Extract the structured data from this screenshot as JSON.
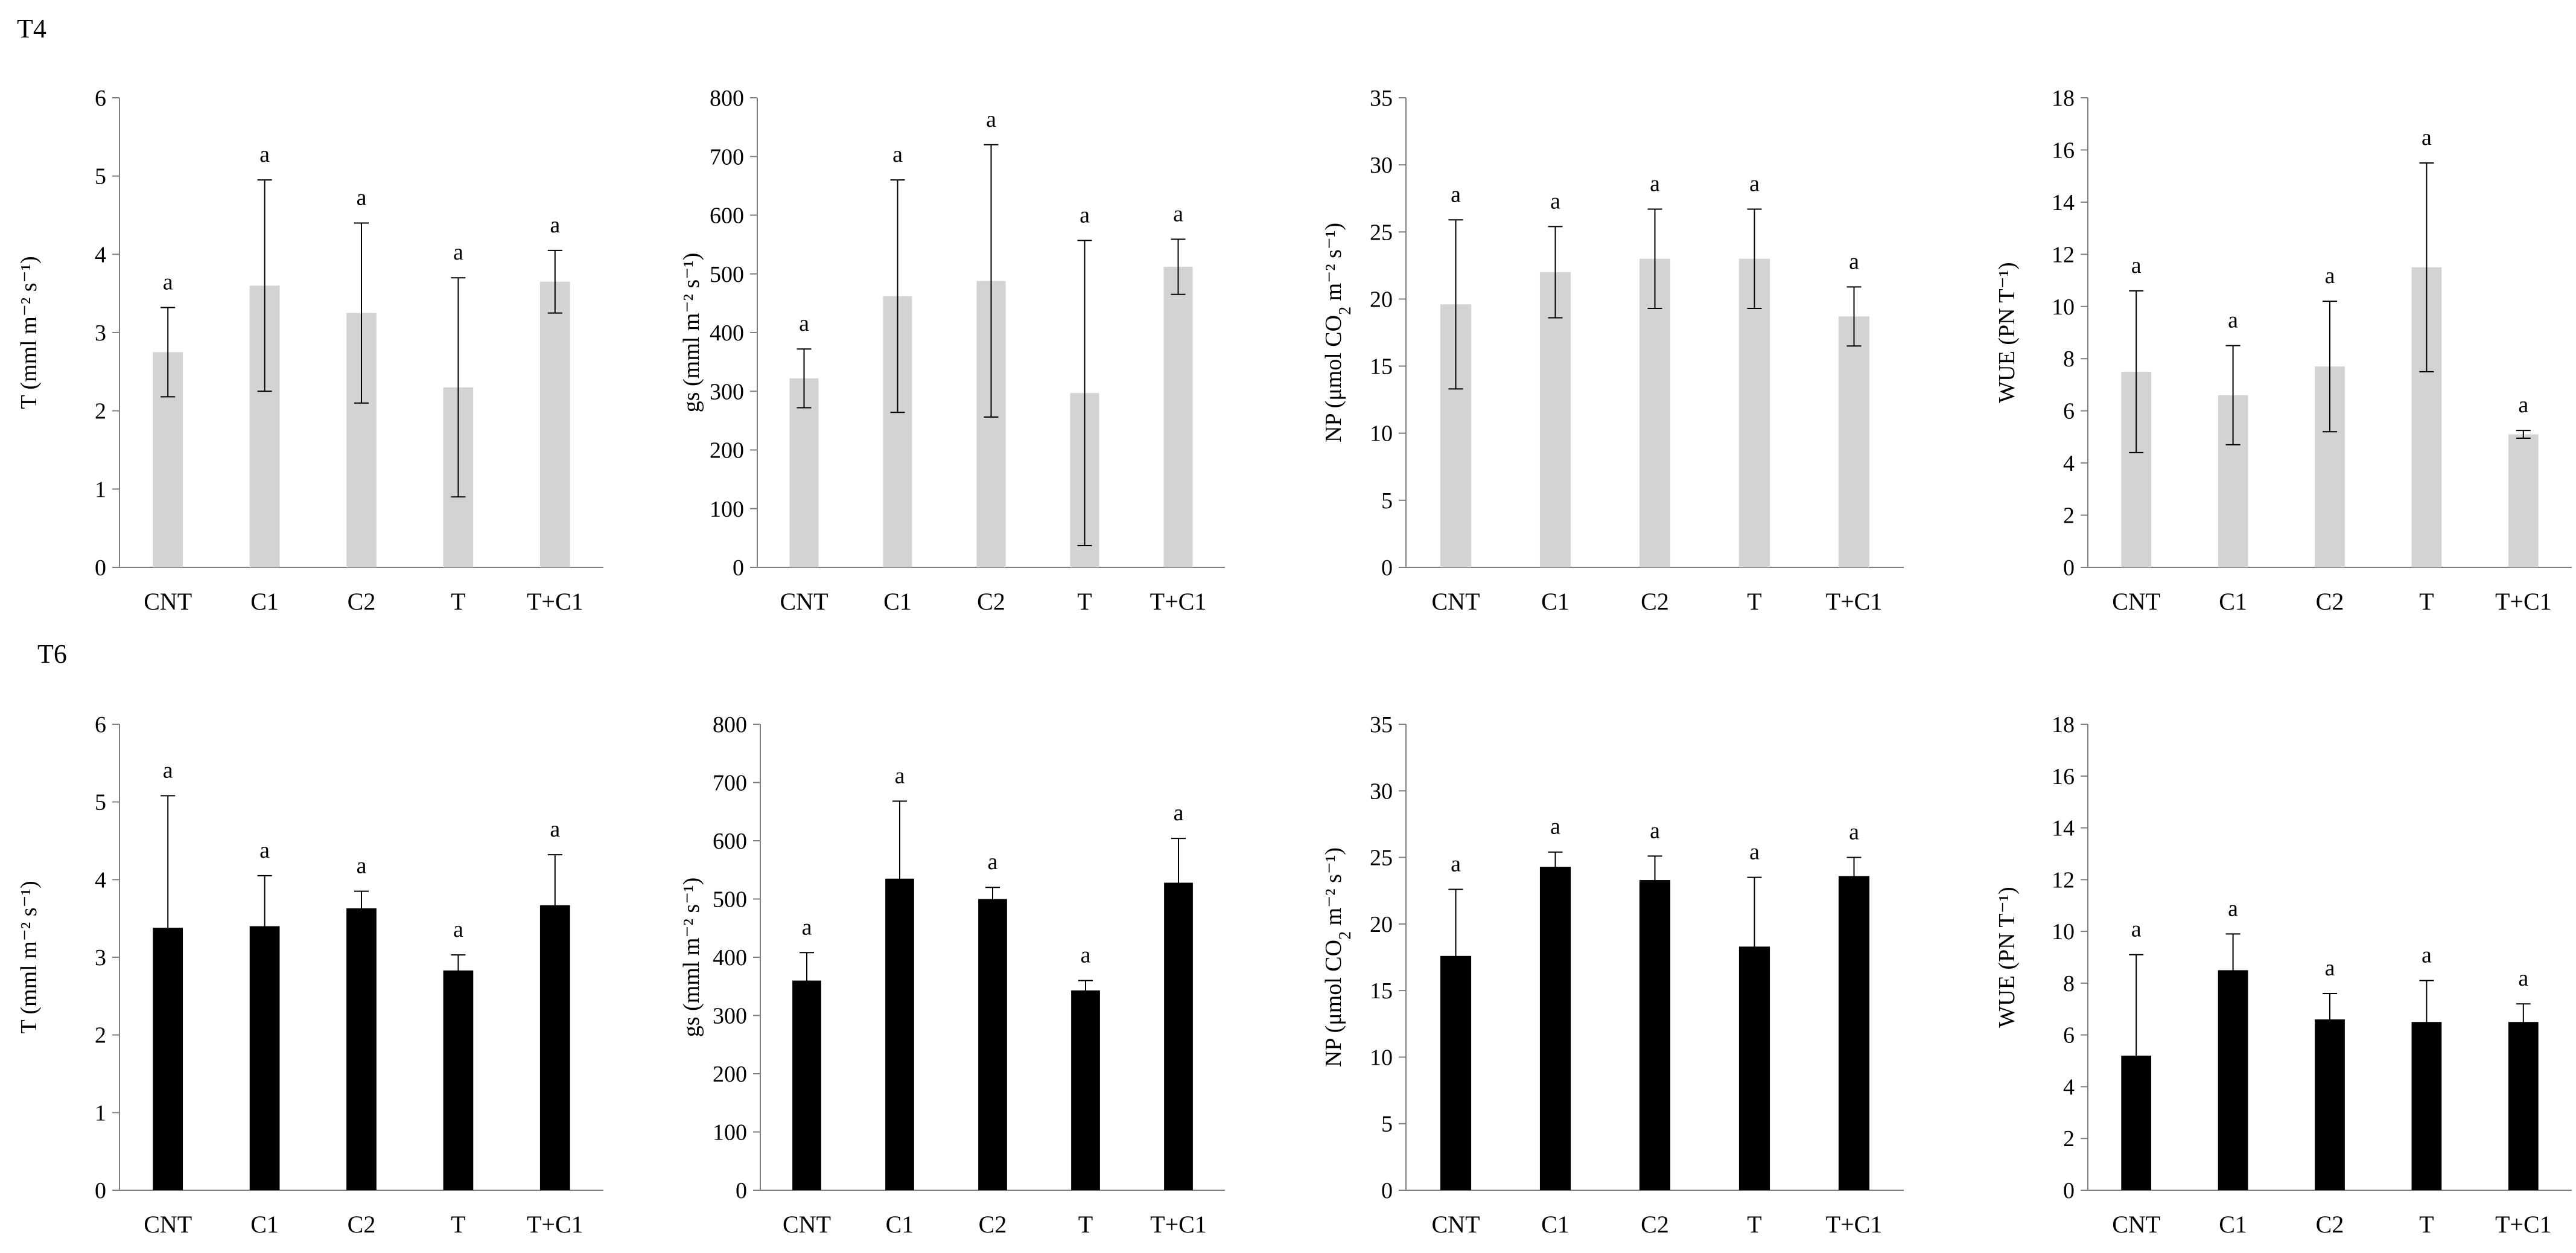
{
  "figure": {
    "row_labels": [
      "T4",
      "T6"
    ]
  },
  "colors": {
    "row_T4_bars": "#d3d3d3",
    "row_T6_bars": "#000000",
    "axis": "#7f7f7f",
    "error_bar": "#000000"
  },
  "chart_data": [
    {
      "id": "t4-transpiration",
      "row": "T4",
      "type": "bar",
      "categories": [
        "CNT",
        "C1",
        "C2",
        "T",
        "T+C1"
      ],
      "values": [
        2.75,
        3.6,
        3.25,
        2.3,
        3.65
      ],
      "errors": [
        0.57,
        1.35,
        1.15,
        1.4,
        0.4
      ],
      "sig_labels": [
        "a",
        "a",
        "a",
        "a",
        "a"
      ],
      "ylabel": "T (mml m⁻² s⁻¹)",
      "ylim": [
        0,
        6
      ],
      "yticks": [
        0,
        1,
        2,
        3,
        4,
        5,
        6
      ],
      "bar_color": "#d3d3d3"
    },
    {
      "id": "t4-stomatal-conductance",
      "row": "T4",
      "type": "bar",
      "categories": [
        "CNT",
        "C1",
        "C2",
        "T",
        "T+C1"
      ],
      "values": [
        322,
        462,
        488,
        297,
        512
      ],
      "errors": [
        50,
        198,
        232,
        260,
        47
      ],
      "sig_labels": [
        "a",
        "a",
        "a",
        "a",
        "a"
      ],
      "ylabel": "gs (mml m⁻² s⁻¹)",
      "ylim": [
        0,
        800
      ],
      "yticks": [
        0,
        100,
        200,
        300,
        400,
        500,
        600,
        700,
        800
      ],
      "bar_color": "#d3d3d3"
    },
    {
      "id": "t4-net-photosynthesis",
      "row": "T4",
      "type": "bar",
      "categories": [
        "CNT",
        "C1",
        "C2",
        "T",
        "T+C1"
      ],
      "values": [
        19.6,
        22.0,
        23.0,
        23.0,
        18.7
      ],
      "errors": [
        6.3,
        3.4,
        3.7,
        3.7,
        2.2
      ],
      "sig_labels": [
        "a",
        "a",
        "a",
        "a",
        "a"
      ],
      "ylabel_parts": [
        "NP (μmol CO",
        "2",
        " m⁻² s⁻¹)"
      ],
      "ylim": [
        0,
        35
      ],
      "yticks": [
        0,
        5,
        10,
        15,
        20,
        25,
        30,
        35
      ],
      "bar_color": "#d3d3d3"
    },
    {
      "id": "t4-water-use-efficiency",
      "row": "T4",
      "type": "bar",
      "categories": [
        "CNT",
        "C1",
        "C2",
        "T",
        "T+C1"
      ],
      "values": [
        7.5,
        6.6,
        7.7,
        11.5,
        5.1
      ],
      "errors": [
        3.1,
        1.9,
        2.5,
        4.0,
        0.15
      ],
      "sig_labels": [
        "a",
        "a",
        "a",
        "a",
        "a"
      ],
      "ylabel": "WUE (PN T⁻¹)",
      "ylim": [
        0,
        18
      ],
      "yticks": [
        0,
        2,
        4,
        6,
        8,
        10,
        12,
        14,
        16,
        18
      ],
      "bar_color": "#d3d3d3"
    },
    {
      "id": "t6-transpiration",
      "row": "T6",
      "type": "bar",
      "categories": [
        "CNT",
        "C1",
        "C2",
        "T",
        "T+C1"
      ],
      "values": [
        3.38,
        3.4,
        3.63,
        2.83,
        3.67
      ],
      "errors": [
        1.7,
        0.65,
        0.22,
        0.2,
        0.65
      ],
      "sig_labels": [
        "a",
        "a",
        "a",
        "a",
        "a"
      ],
      "ylabel": "T (mml m⁻² s⁻¹)",
      "ylim": [
        0,
        6
      ],
      "yticks": [
        0,
        1,
        2,
        3,
        4,
        5,
        6
      ],
      "bar_color": "#000000"
    },
    {
      "id": "t6-stomatal-conductance",
      "row": "T6",
      "type": "bar",
      "categories": [
        "CNT",
        "C1",
        "C2",
        "T",
        "T+C1"
      ],
      "values": [
        360,
        535,
        500,
        343,
        528
      ],
      "errors": [
        48,
        133,
        20,
        17,
        76
      ],
      "sig_labels": [
        "a",
        "a",
        "a",
        "a",
        "a"
      ],
      "ylabel": "gs (mml m⁻² s⁻¹)",
      "ylim": [
        0,
        800
      ],
      "yticks": [
        0,
        100,
        200,
        300,
        400,
        500,
        600,
        700,
        800
      ],
      "bar_color": "#000000"
    },
    {
      "id": "t6-net-photosynthesis",
      "row": "T6",
      "type": "bar",
      "categories": [
        "CNT",
        "C1",
        "C2",
        "T",
        "T+C1"
      ],
      "values": [
        17.6,
        24.3,
        23.3,
        18.3,
        23.6
      ],
      "errors": [
        5.0,
        1.1,
        1.8,
        5.2,
        1.4
      ],
      "sig_labels": [
        "a",
        "a",
        "a",
        "a",
        "a"
      ],
      "ylabel_parts": [
        "NP (μmol CO",
        "2",
        " m⁻² s⁻¹)"
      ],
      "ylim": [
        0,
        35
      ],
      "yticks": [
        0,
        5,
        10,
        15,
        20,
        25,
        30,
        35
      ],
      "bar_color": "#000000"
    },
    {
      "id": "t6-water-use-efficiency",
      "row": "T6",
      "type": "bar",
      "categories": [
        "CNT",
        "C1",
        "C2",
        "T",
        "T+C1"
      ],
      "values": [
        5.2,
        8.5,
        6.6,
        6.5,
        6.5
      ],
      "errors": [
        3.9,
        1.4,
        1.0,
        1.6,
        0.7
      ],
      "sig_labels": [
        "a",
        "a",
        "a",
        "a",
        "a"
      ],
      "ylabel": "WUE (PN T⁻¹)",
      "ylim": [
        0,
        18
      ],
      "yticks": [
        0,
        2,
        4,
        6,
        8,
        10,
        12,
        14,
        16,
        18
      ],
      "bar_color": "#000000"
    }
  ]
}
